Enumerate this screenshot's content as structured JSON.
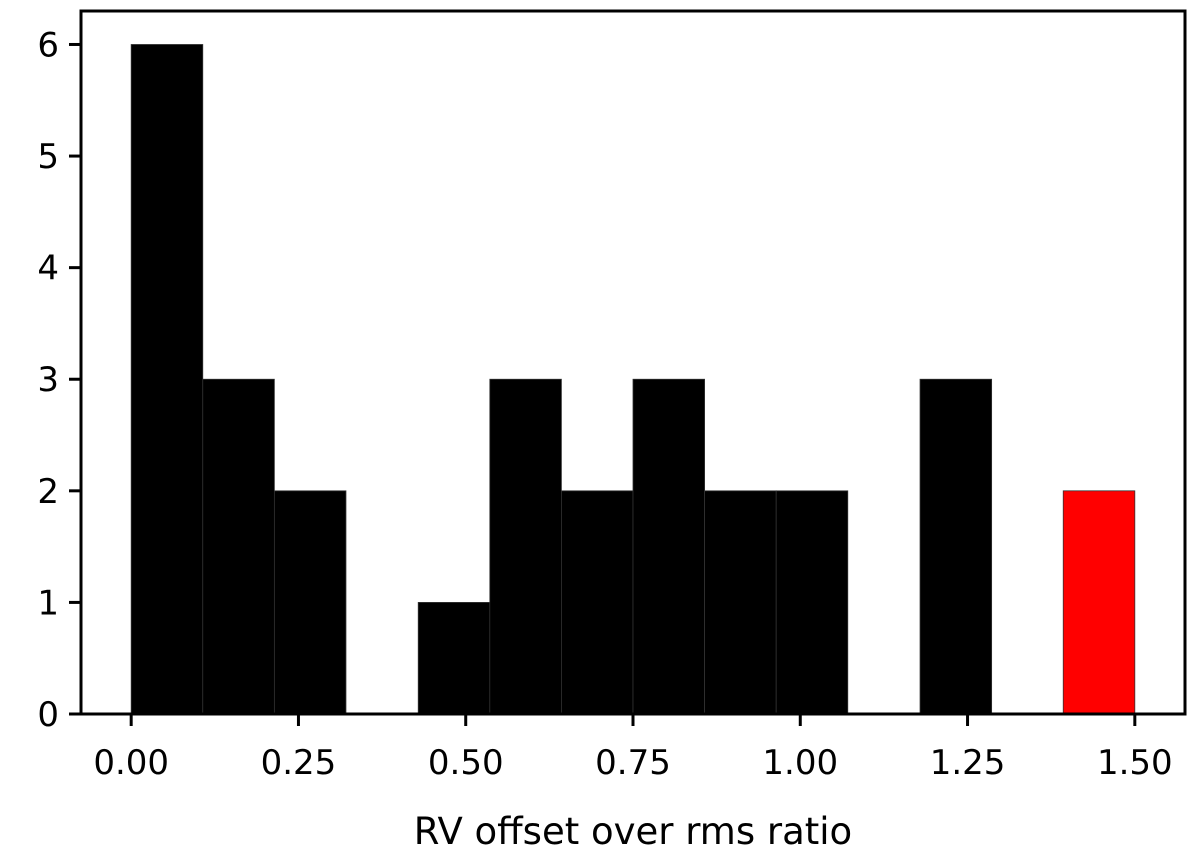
{
  "chart_data": {
    "type": "bar",
    "subtype": "histogram",
    "title": "",
    "xlabel": "RV offset over rms ratio",
    "ylabel": "",
    "xlim": [
      -0.075,
      1.575
    ],
    "ylim": [
      0,
      6.3
    ],
    "x_ticks": [
      {
        "value": 0.0,
        "label": "0.00"
      },
      {
        "value": 0.25,
        "label": "0.25"
      },
      {
        "value": 0.5,
        "label": "0.50"
      },
      {
        "value": 0.75,
        "label": "0.75"
      },
      {
        "value": 1.0,
        "label": "1.00"
      },
      {
        "value": 1.25,
        "label": "1.25"
      },
      {
        "value": 1.5,
        "label": "1.50"
      }
    ],
    "y_ticks": [
      {
        "value": 0,
        "label": "0"
      },
      {
        "value": 1,
        "label": "1"
      },
      {
        "value": 2,
        "label": "2"
      },
      {
        "value": 3,
        "label": "3"
      },
      {
        "value": 4,
        "label": "4"
      },
      {
        "value": 5,
        "label": "5"
      },
      {
        "value": 6,
        "label": "6"
      }
    ],
    "grid": false,
    "bin_edges": [
      0.0,
      0.107,
      0.214,
      0.321,
      0.429,
      0.536,
      0.643,
      0.75,
      0.857,
      0.964,
      1.071,
      1.179,
      1.286,
      1.393,
      1.5
    ],
    "counts": [
      6,
      3,
      2,
      0,
      1,
      3,
      2,
      3,
      2,
      2,
      0,
      3,
      0,
      2
    ],
    "bar_colors": [
      "#000000",
      "#000000",
      "#000000",
      "#000000",
      "#000000",
      "#000000",
      "#000000",
      "#000000",
      "#000000",
      "#000000",
      "#000000",
      "#000000",
      "#000000",
      "#ff0000"
    ],
    "edge_color": "#333333"
  }
}
